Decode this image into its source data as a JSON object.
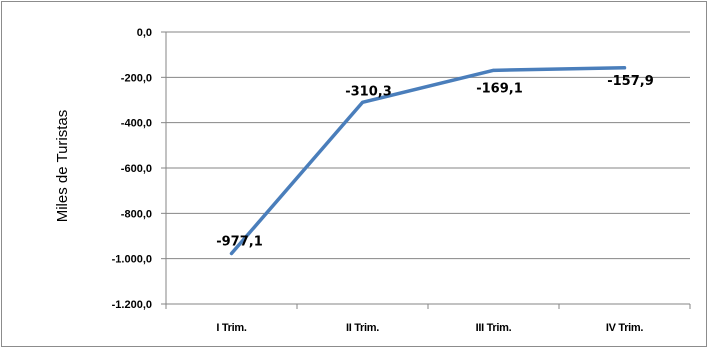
{
  "chart_data": {
    "type": "line",
    "categories": [
      "I Trim.",
      "II Trim.",
      "III Trim.",
      "IV Trim."
    ],
    "series": [
      {
        "values": [
          -977.1,
          -310.3,
          -169.1,
          -157.9
        ]
      }
    ],
    "data_labels": [
      "-977,1",
      "-310,3",
      "-169,1",
      "-157,9"
    ],
    "ylabel": "Miles de Turistas",
    "ylim": [
      -1200,
      0
    ],
    "yticks": [
      0,
      -200,
      -400,
      -600,
      -800,
      -1000,
      -1200
    ],
    "ytick_labels": [
      "0,0",
      "-200,0",
      "-400,0",
      "-600,0",
      "-800,0",
      "-1.000,0",
      "-1.200,0"
    ],
    "grid": true,
    "line_color": "#4a7ebb"
  }
}
